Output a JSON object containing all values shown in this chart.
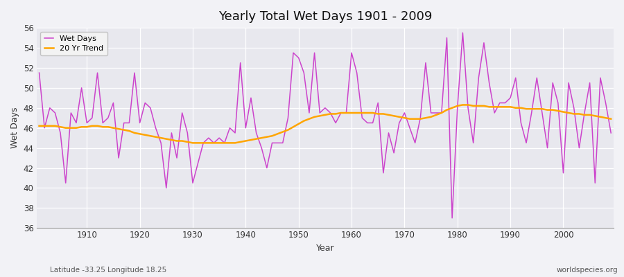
{
  "title": "Yearly Total Wet Days 1901 - 2009",
  "xlabel": "Year",
  "ylabel": "Wet Days",
  "subtitle": "Latitude -33.25 Longitude 18.25",
  "watermark": "worldspecies.org",
  "ylim": [
    36,
    56
  ],
  "yticks": [
    36,
    38,
    40,
    42,
    44,
    46,
    48,
    50,
    52,
    54,
    56
  ],
  "xticks": [
    1910,
    1920,
    1930,
    1940,
    1950,
    1960,
    1970,
    1980,
    1990,
    2000
  ],
  "wet_days_color": "#CC44CC",
  "trend_color": "#FFA500",
  "plot_bg_color": "#E8E8EE",
  "fig_bg_color": "#F2F2F6",
  "years": [
    1901,
    1902,
    1903,
    1904,
    1905,
    1906,
    1907,
    1908,
    1909,
    1910,
    1911,
    1912,
    1913,
    1914,
    1915,
    1916,
    1917,
    1918,
    1919,
    1920,
    1921,
    1922,
    1923,
    1924,
    1925,
    1926,
    1927,
    1928,
    1929,
    1930,
    1931,
    1932,
    1933,
    1934,
    1935,
    1936,
    1937,
    1938,
    1939,
    1940,
    1941,
    1942,
    1943,
    1944,
    1945,
    1946,
    1947,
    1948,
    1949,
    1950,
    1951,
    1952,
    1953,
    1954,
    1955,
    1956,
    1957,
    1958,
    1959,
    1960,
    1961,
    1962,
    1963,
    1964,
    1965,
    1966,
    1967,
    1968,
    1969,
    1970,
    1971,
    1972,
    1973,
    1974,
    1975,
    1976,
    1977,
    1978,
    1979,
    1980,
    1981,
    1982,
    1983,
    1984,
    1985,
    1986,
    1987,
    1988,
    1989,
    1990,
    1991,
    1992,
    1993,
    1994,
    1995,
    1996,
    1997,
    1998,
    1999,
    2000,
    2001,
    2002,
    2003,
    2004,
    2005,
    2006,
    2007,
    2008,
    2009
  ],
  "wet_days": [
    51.5,
    46.0,
    48.0,
    47.5,
    45.5,
    40.5,
    47.5,
    46.5,
    50.0,
    46.5,
    47.0,
    51.5,
    46.5,
    47.0,
    48.5,
    43.0,
    46.5,
    46.5,
    51.5,
    46.5,
    48.5,
    48.0,
    46.0,
    44.5,
    40.0,
    45.5,
    43.0,
    47.5,
    45.5,
    40.5,
    42.5,
    44.5,
    45.0,
    44.5,
    45.0,
    44.5,
    46.0,
    45.5,
    52.5,
    46.0,
    49.0,
    45.5,
    44.0,
    42.0,
    44.5,
    44.5,
    44.5,
    47.0,
    53.5,
    53.0,
    51.5,
    47.5,
    53.5,
    47.5,
    48.0,
    47.5,
    46.5,
    47.5,
    47.5,
    53.5,
    51.5,
    47.0,
    46.5,
    46.5,
    48.5,
    41.5,
    45.5,
    43.5,
    46.5,
    47.5,
    46.0,
    44.5,
    47.0,
    52.5,
    47.5,
    47.5,
    47.5,
    55.0,
    37.0,
    48.0,
    55.5,
    48.0,
    44.5,
    51.0,
    54.5,
    50.5,
    47.5,
    48.5,
    48.5,
    49.0,
    51.0,
    46.5,
    44.5,
    47.5,
    51.0,
    47.5,
    44.0,
    50.5,
    48.5,
    41.5,
    50.5,
    48.0,
    44.0,
    47.5,
    50.5,
    40.5,
    51.0,
    48.5,
    45.5
  ],
  "trend_20yr": [
    46.2,
    46.2,
    46.2,
    46.2,
    46.1,
    46.0,
    46.0,
    46.0,
    46.1,
    46.1,
    46.2,
    46.2,
    46.1,
    46.1,
    46.0,
    45.9,
    45.8,
    45.7,
    45.5,
    45.4,
    45.3,
    45.2,
    45.1,
    45.0,
    44.9,
    44.8,
    44.7,
    44.7,
    44.6,
    44.5,
    44.5,
    44.5,
    44.5,
    44.5,
    44.5,
    44.5,
    44.5,
    44.5,
    44.6,
    44.7,
    44.8,
    44.9,
    45.0,
    45.1,
    45.2,
    45.4,
    45.6,
    45.8,
    46.1,
    46.4,
    46.7,
    46.9,
    47.1,
    47.2,
    47.3,
    47.4,
    47.4,
    47.5,
    47.5,
    47.5,
    47.5,
    47.5,
    47.5,
    47.5,
    47.4,
    47.4,
    47.3,
    47.2,
    47.1,
    47.0,
    46.9,
    46.9,
    46.9,
    47.0,
    47.1,
    47.3,
    47.5,
    47.8,
    48.0,
    48.2,
    48.3,
    48.3,
    48.2,
    48.2,
    48.2,
    48.1,
    48.1,
    48.1,
    48.1,
    48.1,
    48.0,
    48.0,
    47.9,
    47.9,
    47.9,
    47.9,
    47.8,
    47.8,
    47.7,
    47.6,
    47.5,
    47.4,
    47.4,
    47.3,
    47.3,
    47.2,
    47.1,
    47.0,
    46.9
  ]
}
